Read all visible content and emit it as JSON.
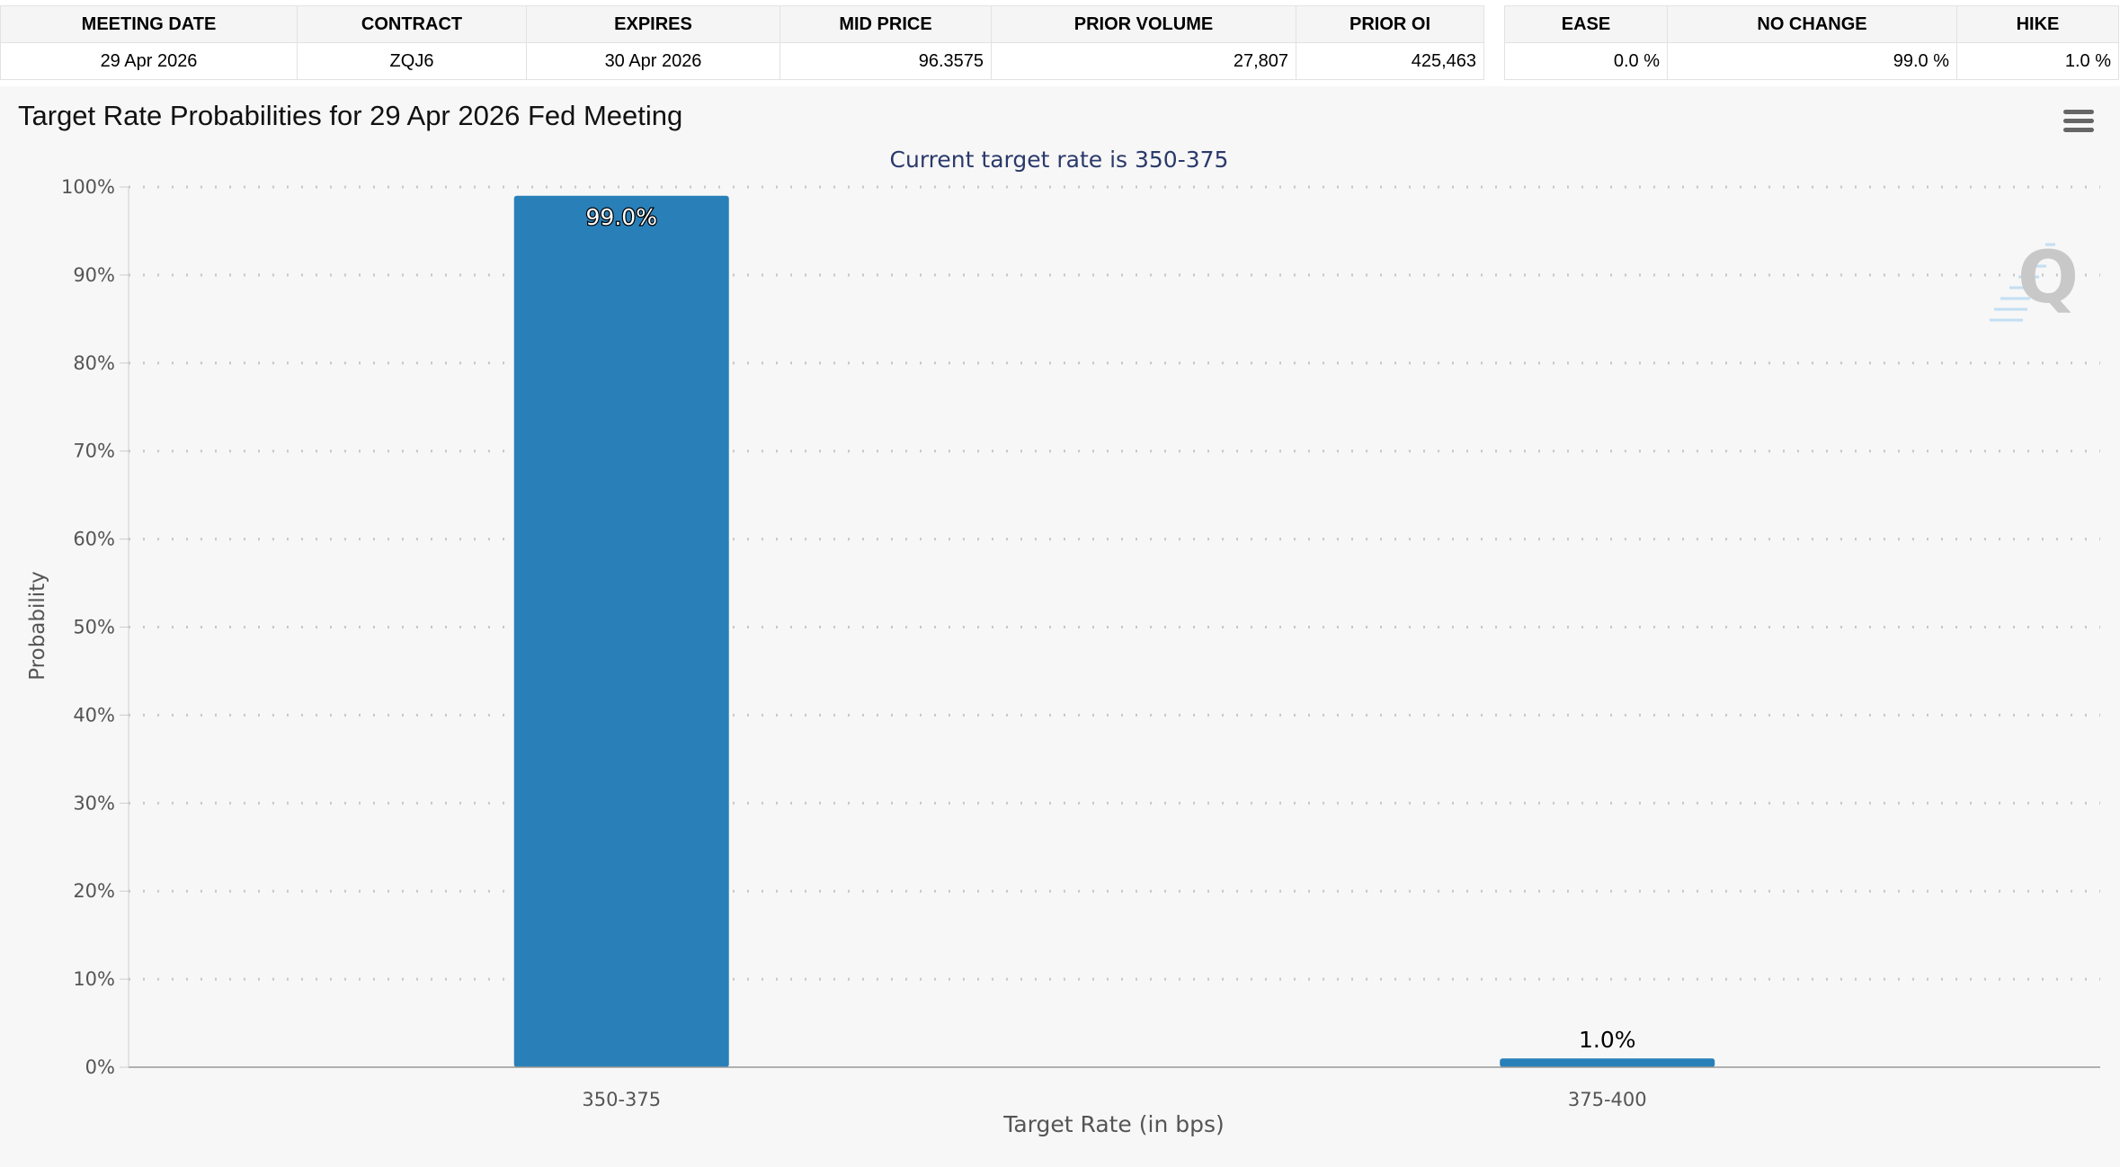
{
  "contract_table": {
    "headers": [
      "MEETING DATE",
      "CONTRACT",
      "EXPIRES",
      "MID PRICE",
      "PRIOR VOLUME",
      "PRIOR OI"
    ],
    "row": [
      "29 Apr 2026",
      "ZQJ6",
      "30 Apr 2026",
      "96.3575",
      "27,807",
      "425,463"
    ]
  },
  "probability_table": {
    "headers": [
      "EASE",
      "NO CHANGE",
      "HIKE"
    ],
    "row": [
      "0.0 %",
      "99.0 %",
      "1.0 %"
    ]
  },
  "menu_icon": "hamburger-menu-icon",
  "watermark": "Q",
  "chart_data": {
    "type": "bar",
    "title": "Target Rate Probabilities for 29 Apr 2026 Fed Meeting",
    "subtitle": "Current target rate is 350-375",
    "categories": [
      "350-375",
      "375-400"
    ],
    "values": [
      99.0,
      1.0
    ],
    "data_labels": [
      "99.0%",
      "1.0%"
    ],
    "xlabel": "Target Rate (in bps)",
    "ylabel": "Probability",
    "ylim": [
      0,
      100
    ],
    "yticks": [
      "0%",
      "10%",
      "20%",
      "30%",
      "40%",
      "50%",
      "60%",
      "70%",
      "80%",
      "90%",
      "100%"
    ],
    "grid": true,
    "bar_color": "#2980b9"
  }
}
